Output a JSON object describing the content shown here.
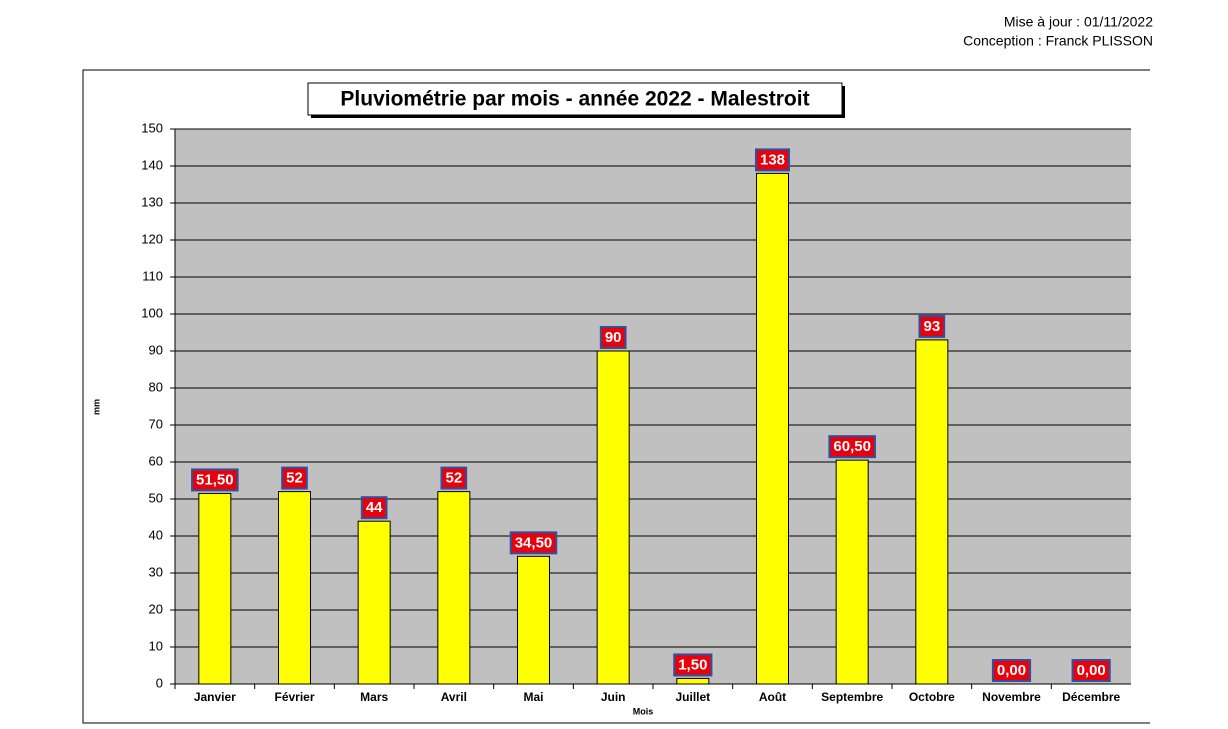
{
  "header": {
    "updated": "Mise à jour : 01/11/2022",
    "author": "Conception : Franck PLISSON"
  },
  "chart_data": {
    "type": "bar",
    "title": "Pluviométrie par mois - année 2022 - Malestroit",
    "x_label": "Mois",
    "y_label": "mm",
    "categories": [
      "Janvier",
      "Février",
      "Mars",
      "Avril",
      "Mai",
      "Juin",
      "Juillet",
      "Août",
      "Septembre",
      "Octobre",
      "Novembre",
      "Décembre"
    ],
    "values": [
      51.5,
      52,
      44,
      52,
      34.5,
      90,
      1.5,
      138,
      60.5,
      93,
      0,
      0
    ],
    "value_labels": [
      "51,50",
      "52",
      "44",
      "52",
      "34,50",
      "90",
      "1,50",
      "138",
      "60,50",
      "93",
      "0,00",
      "0,00"
    ],
    "color": "#ffff00",
    "ylim": [
      0,
      150
    ],
    "yticks": [
      0,
      10,
      20,
      30,
      40,
      50,
      60,
      70,
      80,
      90,
      100,
      110,
      120,
      130,
      140,
      150
    ],
    "grid": true
  }
}
